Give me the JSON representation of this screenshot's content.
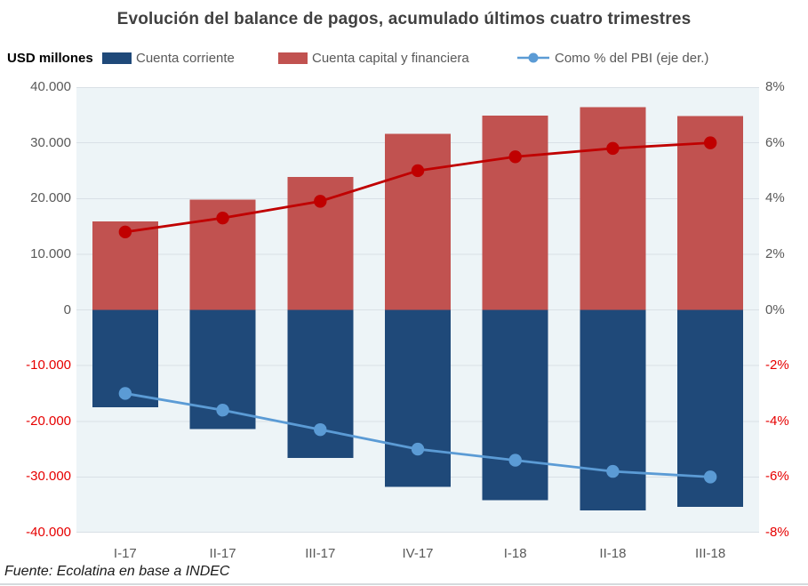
{
  "title": "Evolución del balance de pagos, acumulado últimos cuatro trimestres",
  "units_label": "USD millones",
  "legend": [
    {
      "label": "Cuenta corriente",
      "color": "#1F4979",
      "kind": "bar"
    },
    {
      "label": "Cuenta capital y financiera",
      "color": "#C15250",
      "kind": "bar"
    },
    {
      "label": "Como % del PBI (eje der.)",
      "color": "#5B9BD5",
      "kind": "line"
    }
  ],
  "footer": "Fuente: Ecolatina en base a INDEC",
  "colors": {
    "bar_current": "#1F4979",
    "bar_capital": "#C15250",
    "line_capital_pct": "#C00000",
    "line_current_pct": "#5B9BD5",
    "plot_background": "#EDF4F7",
    "gridline": "#D9E0E6",
    "tick_positive": "#595959",
    "tick_negative": "#E60000",
    "title_text": "#404040"
  },
  "chart_data": {
    "type": "bar",
    "subtype": "combo-bar-line-dual-axis",
    "title": "Evolución del balance de pagos, acumulado últimos cuatro trimestres",
    "categories": [
      "I-17",
      "II-17",
      "III-17",
      "IV-17",
      "I-18",
      "II-18",
      "III-18"
    ],
    "series": [
      {
        "name": "Cuenta corriente",
        "kind": "bar",
        "axis": "left",
        "color": "#1F4979",
        "values": [
          -17500,
          -21400,
          -26600,
          -31800,
          -34200,
          -36000,
          -35400
        ]
      },
      {
        "name": "Cuenta capital y financiera",
        "kind": "bar",
        "axis": "left",
        "color": "#C15250",
        "values": [
          15900,
          19800,
          23900,
          31600,
          34900,
          36400,
          34800
        ]
      },
      {
        "name": "Como % del PBI (eje der.)",
        "of": "Cuenta capital y financiera",
        "kind": "line",
        "axis": "right",
        "color": "#C00000",
        "values": [
          2.8,
          3.3,
          3.9,
          5.0,
          5.5,
          5.8,
          6.0
        ]
      },
      {
        "name": "Como % del PBI (eje der.)",
        "of": "Cuenta corriente",
        "kind": "line",
        "axis": "right",
        "color": "#5B9BD5",
        "values": [
          -3.0,
          -3.6,
          -4.3,
          -5.0,
          -5.4,
          -5.8,
          -6.0
        ]
      }
    ],
    "left_axis": {
      "label": "USD millones",
      "min": -40000,
      "max": 40000,
      "step": 10000,
      "tick_labels": [
        "40.000",
        "30.000",
        "20.000",
        "10.000",
        "0",
        "-10.000",
        "-20.000",
        "-30.000",
        "-40.000"
      ]
    },
    "right_axis": {
      "label": "Como % del PBI",
      "min": -8,
      "max": 8,
      "step": 2,
      "tick_labels": [
        "8%",
        "6%",
        "4%",
        "2%",
        "0%",
        "-2%",
        "-4%",
        "-6%",
        "-8%"
      ]
    },
    "grid": true,
    "legend_position": "top",
    "source": "Fuente: Ecolatina en base a INDEC"
  }
}
